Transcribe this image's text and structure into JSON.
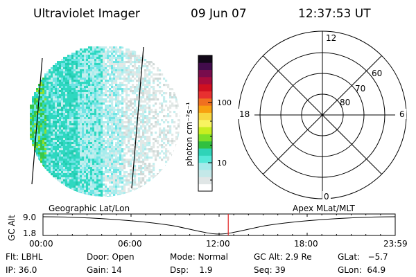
{
  "header": {
    "instrument": "Ultraviolet Imager",
    "date": "09 Jun 07",
    "time": "12:37:53 UT"
  },
  "colorbar": {
    "unit_label": "photon cm⁻²s⁻¹",
    "tick_labels": [
      "100",
      "10"
    ],
    "colors": [
      "#ffffff",
      "#e0e6e6",
      "#c4e8e8",
      "#a6eaea",
      "#55e8d8",
      "#2fd4b8",
      "#30c040",
      "#7de028",
      "#c8ee20",
      "#f8f460",
      "#f8d640",
      "#f8a010",
      "#f07020",
      "#e83030",
      "#d01020",
      "#a80c3c",
      "#780c4c",
      "#420c4c",
      "#120818"
    ]
  },
  "polar_grid": {
    "mlt_labels": {
      "top": "12",
      "left": "18",
      "right": "6",
      "bottom": "0"
    },
    "lat_labels": [
      "60",
      "70",
      "80"
    ]
  },
  "timeline": {
    "left_title": "Geographic Lat/Lon",
    "right_title": "Apex MLat/MLT",
    "axis_label": "GC Alt",
    "y_ticks": [
      "9.0",
      "1.8"
    ],
    "x_ticks": [
      "00:00",
      "06:00",
      "12:00",
      "18:00",
      "23:59"
    ],
    "current_fraction": 0.526
  },
  "status": {
    "flt": "Flt: LBHL",
    "ip": "IP: 36.0",
    "door": "Door: Open",
    "gain": "Gain: 14",
    "mode": "Mode: Normal",
    "dsp": "Dsp:    1.9",
    "gc_alt": "GC Alt: 2.9 Re",
    "seq": "Seq: 39",
    "glat": "GLat:   −5.7",
    "glon": "GLon:  64.9"
  }
}
